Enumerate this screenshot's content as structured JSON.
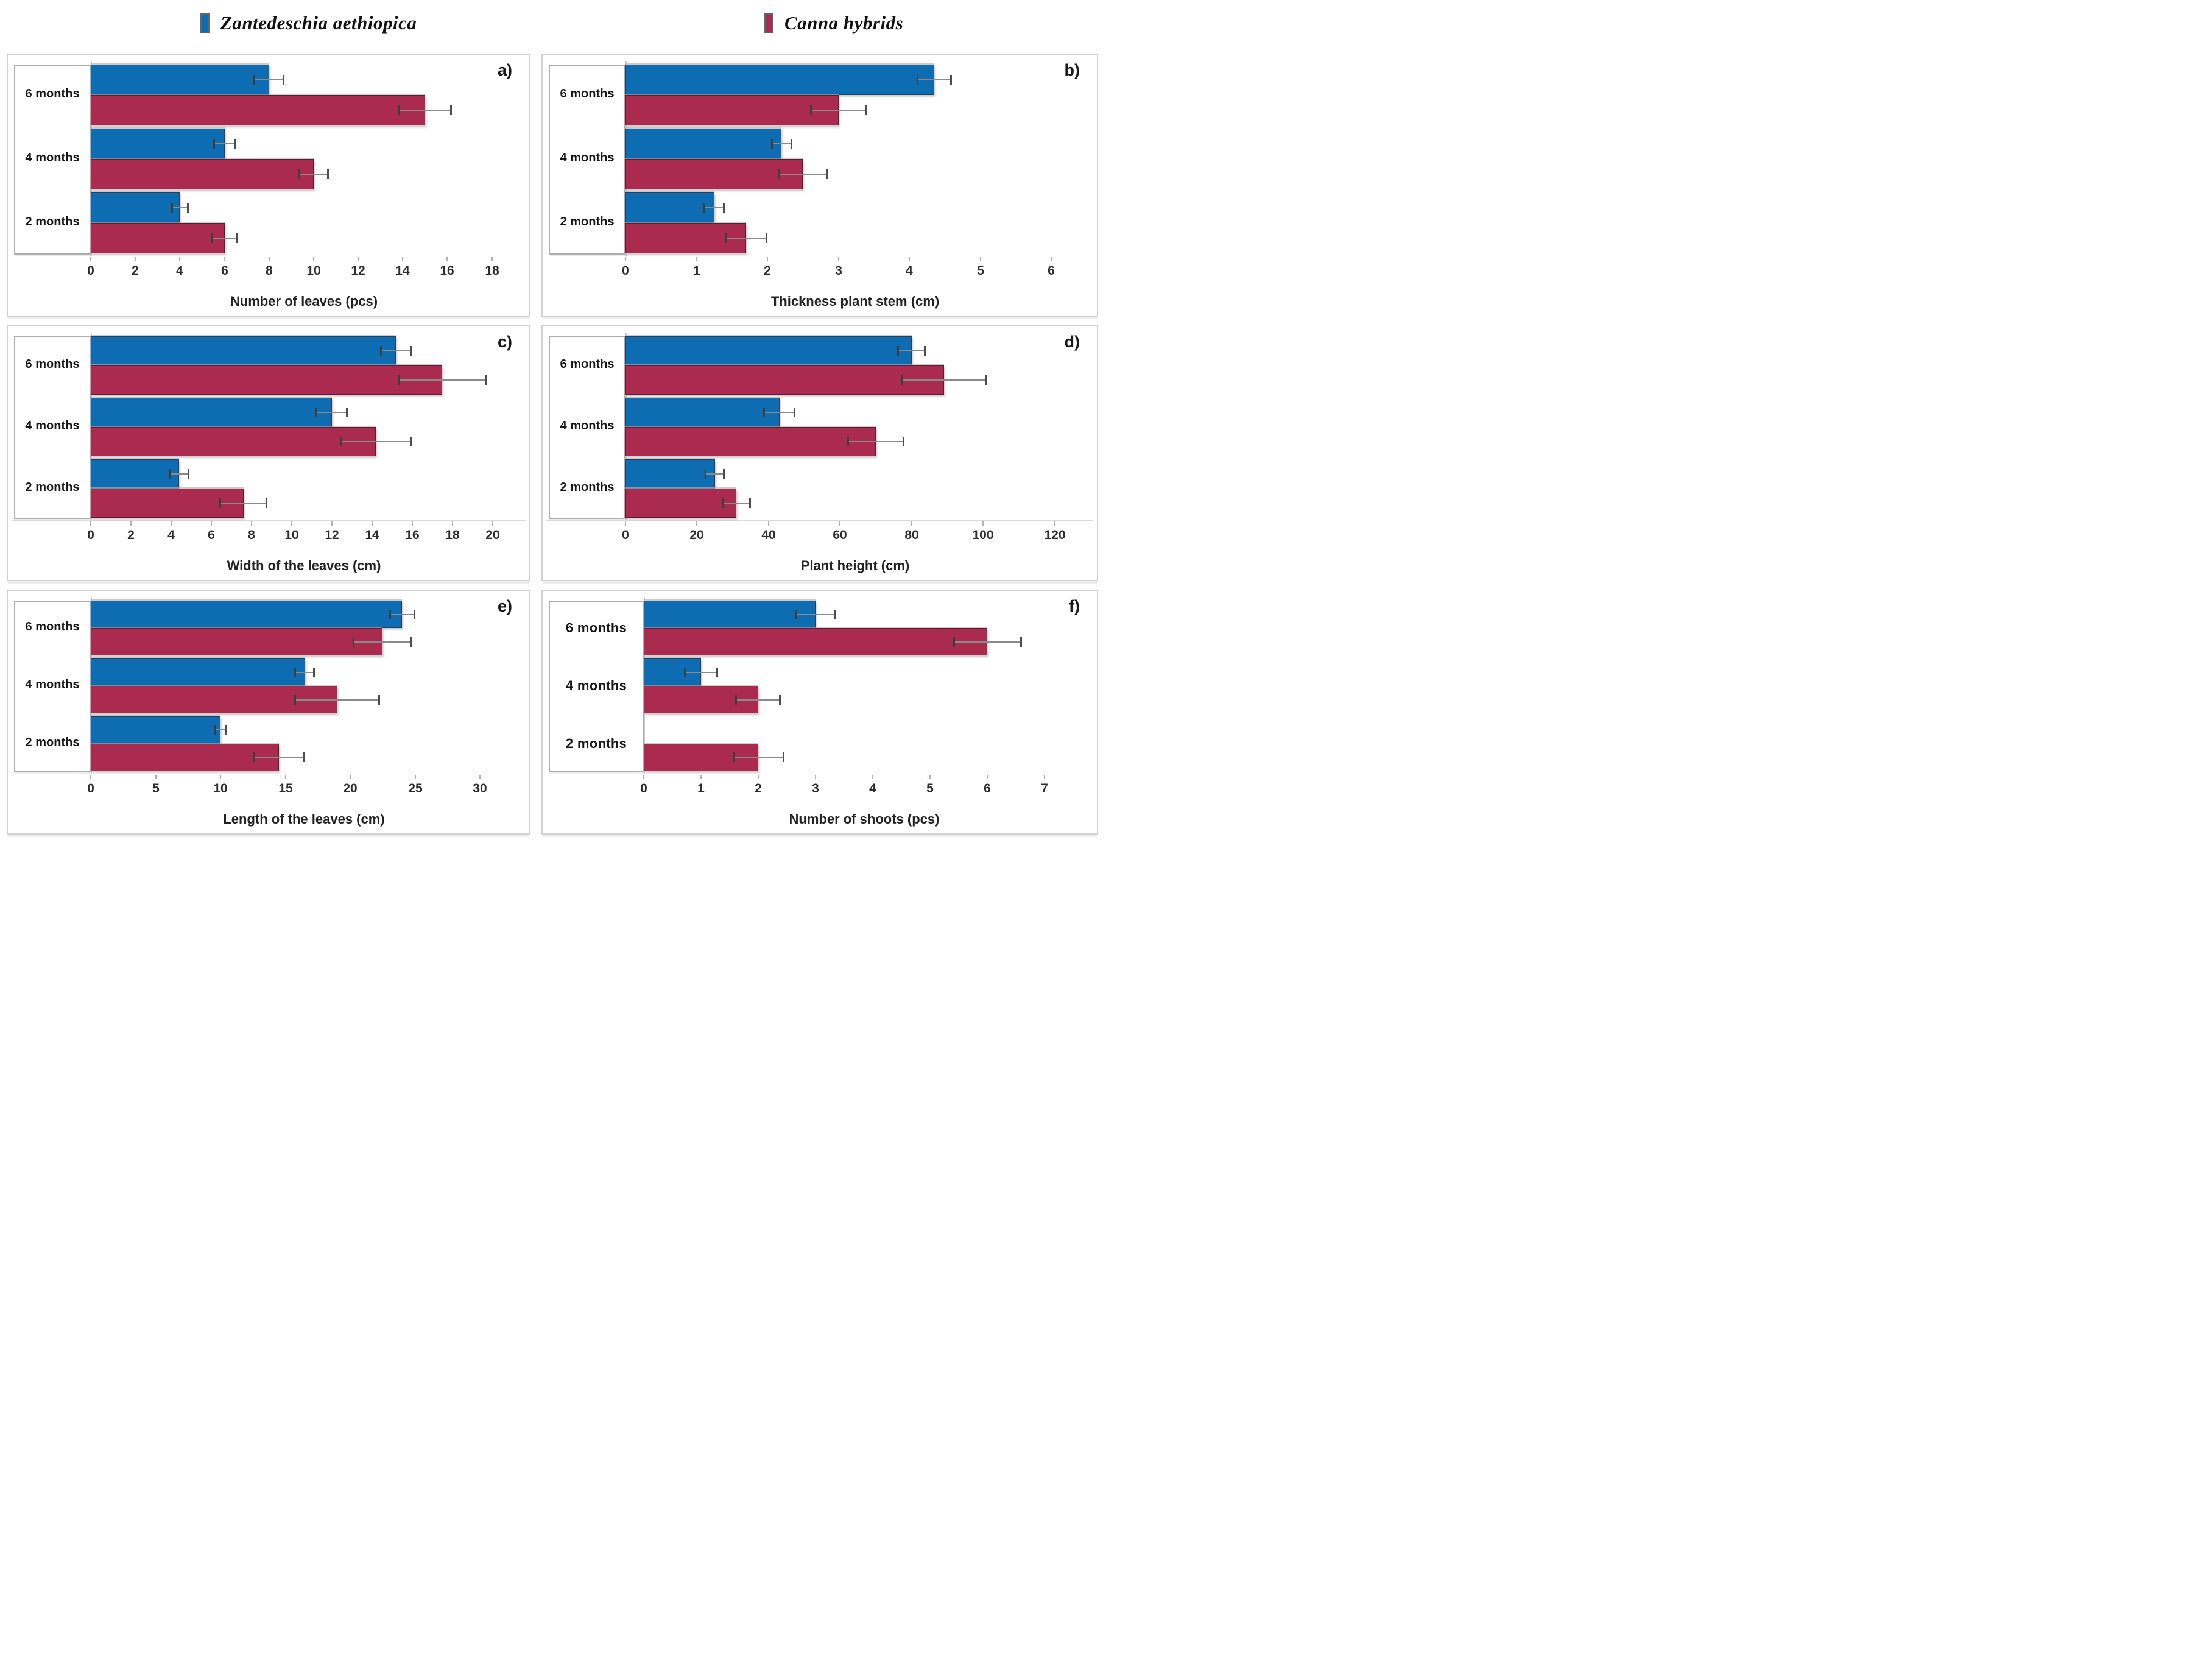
{
  "figure": {
    "description": "Six horizontal grouped bar charts (a-f) comparing growth parameters of two plant species over 2, 4 and 6 months, with error bars",
    "legend_position": "top"
  },
  "legend": {
    "items": [
      {
        "label": "Zantedeschia aethiopica",
        "color": "#0d6cb2"
      },
      {
        "label": "Canna hybrids",
        "color": "#ab2a4f"
      }
    ]
  },
  "chart_data": [
    {
      "type": "bar",
      "letter": "a)",
      "orientation": "horizontal",
      "xlabel": "Number of leaves (pcs)",
      "categories": [
        "6 months",
        "4 months",
        "2 months"
      ],
      "xlim": [
        0,
        18.75
      ],
      "xticks": [
        0,
        2,
        4,
        6,
        8,
        10,
        12,
        14,
        16,
        18
      ],
      "series": [
        {
          "name": "Zantedeschia aethiopica",
          "color": "#0d6cb2",
          "values": [
            8,
            6,
            4
          ],
          "errors": [
            0.7,
            0.5,
            0.4
          ]
        },
        {
          "name": "Canna hybrids",
          "color": "#ab2a4f",
          "values": [
            15,
            10,
            6
          ],
          "errors": [
            1.2,
            0.7,
            0.6
          ]
        }
      ]
    },
    {
      "type": "bar",
      "letter": "b)",
      "orientation": "horizontal",
      "xlabel": "Thickness plant stem (cm)",
      "categories": [
        "6 months",
        "4 months",
        "2 months"
      ],
      "xlim": [
        0,
        6.35
      ],
      "xticks": [
        0,
        1,
        2,
        3,
        4,
        5,
        6
      ],
      "series": [
        {
          "name": "Zantedeschia aethiopica",
          "color": "#0d6cb2",
          "values": [
            4.35,
            2.2,
            1.25
          ],
          "errors": [
            0.25,
            0.15,
            0.15
          ]
        },
        {
          "name": "Canna hybrids",
          "color": "#ab2a4f",
          "values": [
            3.0,
            2.5,
            1.7
          ],
          "errors": [
            0.4,
            0.35,
            0.3
          ]
        }
      ]
    },
    {
      "type": "bar",
      "letter": "c)",
      "orientation": "horizontal",
      "xlabel": "Width of the leaves (cm)",
      "categories": [
        "6 months",
        "4 months",
        "2 months"
      ],
      "xlim": [
        0,
        20.8
      ],
      "xticks": [
        0,
        2,
        4,
        6,
        8,
        10,
        12,
        14,
        16,
        18,
        20
      ],
      "series": [
        {
          "name": "Zantedeschia aethiopica",
          "color": "#0d6cb2",
          "values": [
            15.2,
            12,
            4.4
          ],
          "errors": [
            0.8,
            0.8,
            0.5
          ]
        },
        {
          "name": "Canna hybrids",
          "color": "#ab2a4f",
          "values": [
            17.5,
            14.2,
            7.6
          ],
          "errors": [
            2.2,
            1.8,
            1.2
          ]
        }
      ]
    },
    {
      "type": "bar",
      "letter": "d)",
      "orientation": "horizontal",
      "xlabel": "Plant height (cm)",
      "categories": [
        "6 months",
        "4 months",
        "2 months"
      ],
      "xlim": [
        0,
        126
      ],
      "xticks": [
        0,
        20,
        40,
        60,
        80,
        100,
        120
      ],
      "series": [
        {
          "name": "Zantedeschia aethiopica",
          "color": "#0d6cb2",
          "values": [
            80,
            43,
            25
          ],
          "errors": [
            4,
            4.5,
            2.8
          ]
        },
        {
          "name": "Canna hybrids",
          "color": "#ab2a4f",
          "values": [
            89,
            70,
            31
          ],
          "errors": [
            12,
            8,
            4
          ]
        }
      ]
    },
    {
      "type": "bar",
      "letter": "e)",
      "orientation": "horizontal",
      "xlabel": "Length of the leaves (cm)",
      "categories": [
        "6 months",
        "4 months",
        "2 months"
      ],
      "xlim": [
        0,
        32.2
      ],
      "xticks": [
        0,
        5,
        10,
        15,
        20,
        25,
        30
      ],
      "series": [
        {
          "name": "Zantedeschia aethiopica",
          "color": "#0d6cb2",
          "values": [
            24,
            16.5,
            10
          ],
          "errors": [
            1.0,
            0.8,
            0.5
          ]
        },
        {
          "name": "Canna hybrids",
          "color": "#ab2a4f",
          "values": [
            22.5,
            19,
            14.5
          ],
          "errors": [
            2.3,
            3.3,
            2.0
          ]
        }
      ]
    },
    {
      "type": "bar",
      "letter": "f)",
      "orientation": "horizontal",
      "xlabel": "Number of shoots (pcs)",
      "categories": [
        "6 months",
        "4 months",
        "2 months"
      ],
      "xlim": [
        0,
        7.55
      ],
      "xticks": [
        0,
        1,
        2,
        3,
        4,
        5,
        6,
        7
      ],
      "series": [
        {
          "name": "Zantedeschia aethiopica",
          "color": "#0d6cb2",
          "values": [
            3,
            1,
            0
          ],
          "errors": [
            0.35,
            0.3,
            0
          ]
        },
        {
          "name": "Canna hybrids",
          "color": "#ab2a4f",
          "values": [
            6,
            2,
            2
          ],
          "errors": [
            0.6,
            0.4,
            0.45
          ]
        }
      ]
    }
  ]
}
